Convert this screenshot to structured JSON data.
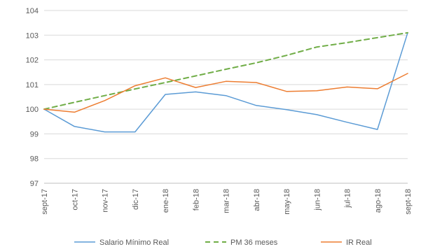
{
  "chart_data": {
    "type": "line",
    "categories": [
      "sept-17",
      "oct-17",
      "nov-17",
      "dic-17",
      "ene-18",
      "feb-18",
      "mar-18",
      "abr-18",
      "may-18",
      "jun-18",
      "jul-18",
      "ago-18",
      "sept-18"
    ],
    "ylim": [
      97,
      104
    ],
    "yticks": [
      97,
      98,
      99,
      100,
      101,
      102,
      103,
      104
    ],
    "grid": true,
    "legend": "bottom",
    "series": [
      {
        "name": "Salario Mínimo Real",
        "color": "#5b9bd5",
        "dashed": false,
        "values": [
          100.0,
          99.3,
          99.08,
          99.08,
          100.6,
          100.7,
          100.55,
          100.15,
          99.98,
          99.78,
          99.47,
          99.18,
          103.1
        ]
      },
      {
        "name": "PM 36 meses",
        "color": "#70ad47",
        "dashed": true,
        "values": [
          100.0,
          100.28,
          100.55,
          100.82,
          101.08,
          101.35,
          101.62,
          101.88,
          102.18,
          102.52,
          102.7,
          102.9,
          103.1
        ]
      },
      {
        "name": "IR Real",
        "color": "#ed7d31",
        "dashed": false,
        "values": [
          100.0,
          99.88,
          100.35,
          100.95,
          101.27,
          100.88,
          101.13,
          101.08,
          100.72,
          100.75,
          100.9,
          100.83,
          101.45
        ]
      }
    ]
  }
}
